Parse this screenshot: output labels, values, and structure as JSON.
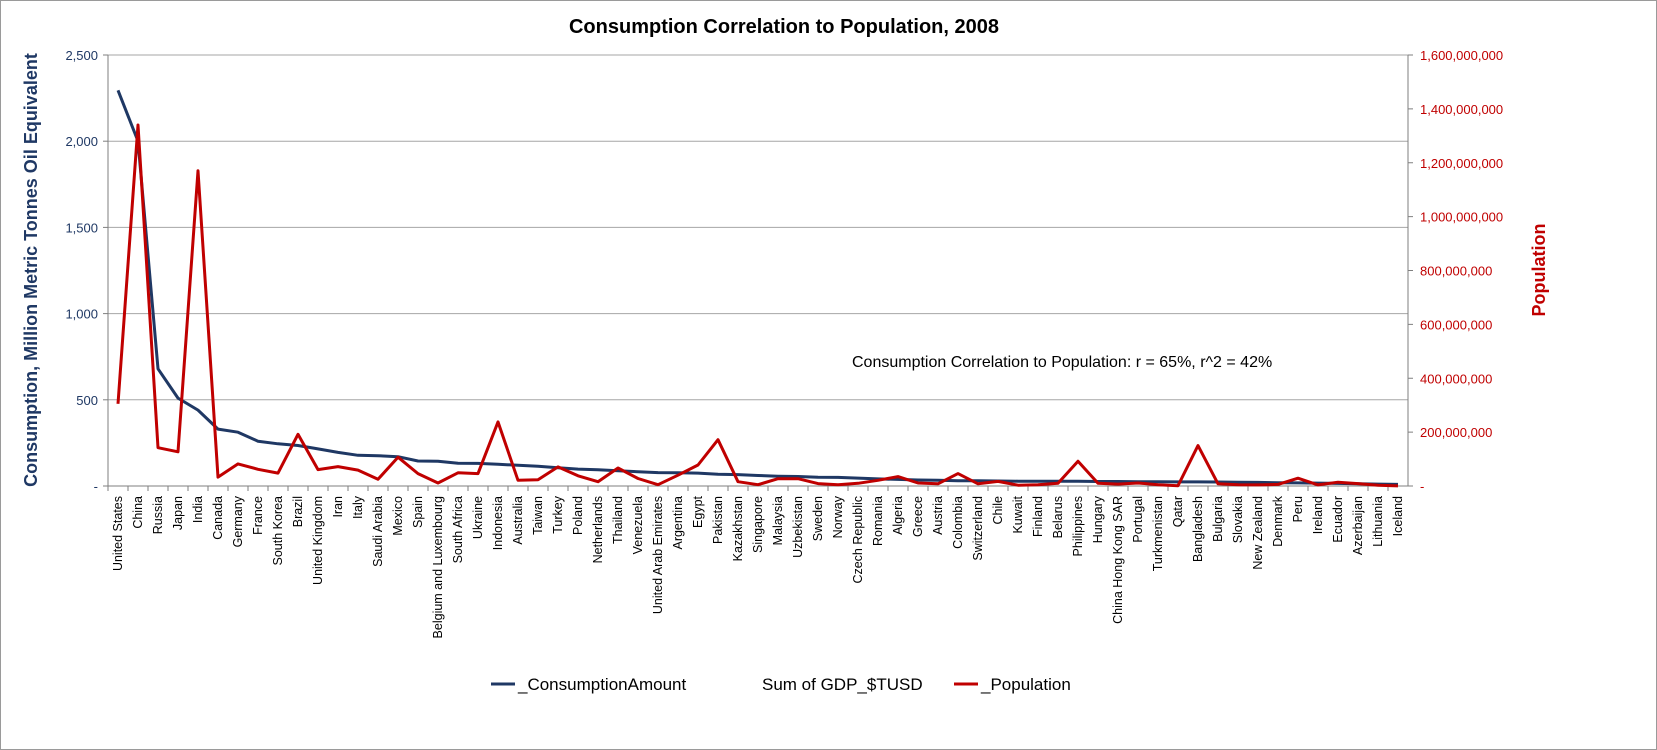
{
  "chart_data": {
    "type": "line",
    "title": "Consumption Correlation to Population, 2008",
    "ylabel": "Consumption,  Million Metric Tonnes Oil Equivalent",
    "y2label": "Population",
    "ylim": [
      0,
      2500
    ],
    "y2lim": [
      0,
      1600000000
    ],
    "y_ticks": [
      "-",
      "500",
      "1,000",
      "1,500",
      "2,000",
      "2,500"
    ],
    "y2_ticks": [
      "-",
      "200,000,000",
      "400,000,000",
      "600,000,000",
      "800,000,000",
      "1,000,000,000",
      "1,200,000,000",
      "1,400,000,000",
      "1,600,000,000"
    ],
    "grid": true,
    "legend_position": "bottom",
    "annotation": "Consumption Correlation to Population: r = 65%, r^2 = 42%",
    "legend": [
      "_ConsumptionAmount",
      "Sum of GDP_$TUSD",
      "_Population"
    ],
    "categories": [
      "United States",
      "China",
      "Russia",
      "Japan",
      "India",
      "Canada",
      "Germany",
      "France",
      "South Korea",
      "Brazil",
      "United Kingdom",
      "Iran",
      "Italy",
      "Saudi Arabia",
      "Mexico",
      "Spain",
      "Belgium and Luxembourg",
      "South Africa",
      "Ukraine",
      "Indonesia",
      "Australia",
      "Taiwan",
      "Turkey",
      "Poland",
      "Netherlands",
      "Thailand",
      "Venezuela",
      "United Arab Emirates",
      "Argentina",
      "Egypt",
      "Pakistan",
      "Kazakhstan",
      "Singapore",
      "Malaysia",
      "Uzbekistan",
      "Sweden",
      "Norway",
      "Czech Republic",
      "Romania",
      "Algeria",
      "Greece",
      "Austria",
      "Colombia",
      "Switzerland",
      "Chile",
      "Kuwait",
      "Finland",
      "Belarus",
      "Philippines",
      "Hungary",
      "China Hong Kong SAR",
      "Portugal",
      "Turkmenistan",
      "Qatar",
      "Bangladesh",
      "Bulgaria",
      "Slovakia",
      "New Zealand",
      "Denmark",
      "Peru",
      "Ireland",
      "Ecuador",
      "Azerbaijan",
      "Lithuania",
      "Iceland"
    ],
    "series": [
      {
        "name": "_ConsumptionAmount",
        "axis": "left",
        "color": "#1f3864",
        "values": [
          2295,
          2000,
          680,
          510,
          440,
          330,
          312,
          260,
          245,
          235,
          215,
          195,
          178,
          176,
          170,
          145,
          143,
          132,
          131,
          126,
          120,
          114,
          106,
          98,
          94,
          88,
          83,
          78,
          77,
          75,
          68,
          66,
          61,
          57,
          55,
          51,
          50,
          46,
          41,
          38,
          35,
          33,
          31,
          30,
          29,
          28,
          28,
          27,
          27,
          26,
          26,
          25,
          25,
          24,
          24,
          23,
          22,
          21,
          19,
          18,
          17,
          15,
          13,
          11,
          9
        ]
      },
      {
        "name": "_Population",
        "axis": "right",
        "color": "#c00000",
        "values": [
          305000000,
          1340000000,
          142000000,
          127000000,
          1170000000,
          33000000,
          82000000,
          62000000,
          48000000,
          192000000,
          61000000,
          72000000,
          59000000,
          25000000,
          107000000,
          46000000,
          11000000,
          49000000,
          46000000,
          238000000,
          21000000,
          23000000,
          71000000,
          38000000,
          16000000,
          67000000,
          28000000,
          5000000,
          40000000,
          78000000,
          172000000,
          16000000,
          5000000,
          27000000,
          27000000,
          9000000,
          5000000,
          10000000,
          21000000,
          35000000,
          11000000,
          8000000,
          46000000,
          8000000,
          17000000,
          3000000,
          5000000,
          10000000,
          92000000,
          10000000,
          7000000,
          11000000,
          5000000,
          1000000,
          150000000,
          8000000,
          5000000,
          4000000,
          6000000,
          29000000,
          4000000,
          14000000,
          9000000,
          3000000,
          300000
        ]
      }
    ]
  }
}
